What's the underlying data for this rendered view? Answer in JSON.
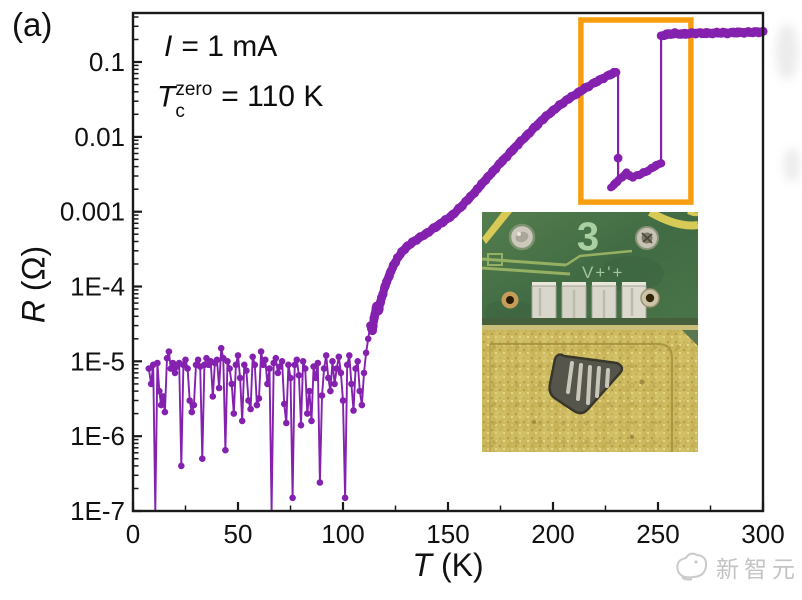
{
  "figure": {
    "panel_label": "(a)"
  },
  "annotations": {
    "current": {
      "var": "I",
      "rest": "= 1 mA"
    },
    "tc": {
      "var": "T",
      "sup": "zero",
      "sub": "c",
      "rest": "= 110 K"
    }
  },
  "axes": {
    "x": {
      "label_var": "T",
      "label_rest": "(K)",
      "range": [
        0,
        300
      ],
      "ticks": [
        {
          "value": 0,
          "label": "0"
        },
        {
          "value": 50,
          "label": "50"
        },
        {
          "value": 100,
          "label": "100"
        },
        {
          "value": 150,
          "label": "150"
        },
        {
          "value": 200,
          "label": "200"
        },
        {
          "value": 250,
          "label": "250"
        },
        {
          "value": 300,
          "label": "300"
        }
      ],
      "minor_ticks": [
        25,
        75,
        125,
        175,
        225,
        275
      ]
    },
    "y": {
      "label_var": "R",
      "label_rest": "(Ω)",
      "scale": "log",
      "range": [
        1e-07,
        0.452
      ],
      "ticks": [
        {
          "value": 0.1,
          "label": "0.1"
        },
        {
          "value": 0.01,
          "label": "0.01"
        },
        {
          "value": 0.001,
          "label": "0.001"
        },
        {
          "value": 0.0001,
          "label": "1E-4"
        },
        {
          "value": 1e-05,
          "label": "1E-5"
        },
        {
          "value": 1e-06,
          "label": "1E-6"
        },
        {
          "value": 1e-07,
          "label": "1E-7"
        }
      ]
    }
  },
  "chart_data": {
    "type": "line",
    "title": "",
    "xlabel": "T (K)",
    "ylabel": "R (Ω)",
    "xlim": [
      0,
      300
    ],
    "ylim_log": [
      1e-07,
      0.452
    ],
    "legend": "none",
    "grid": false,
    "colors": {
      "data": "#8421AE",
      "highlight_box": "#F69D10"
    },
    "highlight_box": {
      "x0": 213.3,
      "x1": 265.7,
      "y0": 0.00134,
      "y1": 0.364
    },
    "series": [
      {
        "name": "superconducting_noise_floor",
        "style": "noise",
        "points": [
          [
            7.5,
            8e-06
          ],
          [
            8.6,
            5e-06
          ],
          [
            9.6,
            9e-06
          ],
          [
            10.6,
            1e-07
          ],
          [
            11.6,
            9.5e-06
          ],
          [
            12.5,
            4e-06
          ],
          [
            13.4,
            2.6e-06
          ],
          [
            14.3,
            3.4e-06
          ],
          [
            15.2,
            2.1e-06
          ],
          [
            16.2,
            1.1e-05
          ],
          [
            17.1,
            1.35e-05
          ],
          [
            18,
            8e-06
          ],
          [
            19,
            9.5e-06
          ],
          [
            20,
            7e-06
          ],
          [
            21,
            8.5e-06
          ],
          [
            22,
            9.5e-06
          ],
          [
            23,
            4e-07
          ],
          [
            24,
            9e-06
          ],
          [
            25,
            1.05e-05
          ],
          [
            26,
            8e-06
          ],
          [
            27,
            3e-06
          ],
          [
            28,
            2.1e-06
          ],
          [
            29,
            2.6e-06
          ],
          [
            30,
            9e-06
          ],
          [
            31,
            1.05e-05
          ],
          [
            32,
            8.5e-06
          ],
          [
            33,
            5e-07
          ],
          [
            34,
            9e-06
          ],
          [
            35,
            1.1e-05
          ],
          [
            36,
            9e-06
          ],
          [
            37,
            1e-05
          ],
          [
            38,
            3.4e-06
          ],
          [
            39,
            9.5e-06
          ],
          [
            40,
            1.05e-05
          ],
          [
            41,
            4.4e-06
          ],
          [
            42,
            1.5e-05
          ],
          [
            43,
            1.1e-05
          ],
          [
            44,
            6.5e-07
          ],
          [
            45,
            1e-05
          ],
          [
            46,
            8e-06
          ],
          [
            47,
            5e-06
          ],
          [
            48,
            2e-06
          ],
          [
            49,
            9e-06
          ],
          [
            50,
            1.2e-05
          ],
          [
            51,
            6e-06
          ],
          [
            52,
            1.6e-06
          ],
          [
            53,
            9e-06
          ],
          [
            54,
            7.5e-06
          ],
          [
            55,
            3e-06
          ],
          [
            56,
            2.3e-06
          ],
          [
            57,
            1.15e-05
          ],
          [
            58,
            9e-06
          ],
          [
            59,
            2.6e-06
          ],
          [
            60,
            3.2e-06
          ],
          [
            61,
            1.35e-05
          ],
          [
            62,
            9e-06
          ],
          [
            63,
            1.05e-05
          ],
          [
            64,
            5e-06
          ],
          [
            65,
            8e-06
          ],
          [
            66,
            1e-07
          ],
          [
            67,
            9.5e-06
          ],
          [
            68,
            1.1e-05
          ],
          [
            69,
            7e-06
          ],
          [
            70,
            8.5e-06
          ],
          [
            71,
            1e-05
          ],
          [
            72,
            2.7e-06
          ],
          [
            73,
            1.5e-06
          ],
          [
            74,
            9e-06
          ],
          [
            75,
            6e-06
          ],
          [
            76,
            1.5e-07
          ],
          [
            77,
            9e-06
          ],
          [
            78,
            1.05e-05
          ],
          [
            79,
            6.5e-06
          ],
          [
            80,
            1.4e-06
          ],
          [
            81,
            1e-05
          ],
          [
            82,
            8e-06
          ],
          [
            83,
            2e-06
          ],
          [
            84,
            4e-06
          ],
          [
            85,
            1.6e-06
          ],
          [
            86,
            8.5e-06
          ],
          [
            87,
            6e-06
          ],
          [
            88,
            9.5e-06
          ],
          [
            89,
            2.4e-07
          ],
          [
            90,
            3.5e-06
          ],
          [
            91,
            8e-06
          ],
          [
            92,
            1.2e-05
          ],
          [
            93,
            6e-06
          ],
          [
            94,
            4e-06
          ],
          [
            95,
            1e-05
          ],
          [
            96,
            5e-06
          ],
          [
            97,
            8e-06
          ],
          [
            98,
            1.15e-05
          ],
          [
            99,
            7e-06
          ],
          [
            100,
            3e-06
          ],
          [
            101,
            1.5e-07
          ],
          [
            102,
            9e-06
          ],
          [
            103,
            1.2e-05
          ],
          [
            104,
            5e-06
          ],
          [
            105,
            2.2e-06
          ],
          [
            106,
            8e-06
          ],
          [
            107,
            1e-05
          ],
          [
            108,
            4e-06
          ],
          [
            109,
            2.6e-06
          ],
          [
            110,
            7e-06
          ],
          [
            111,
            1.3e-05
          ],
          [
            112,
            2e-05
          ],
          [
            113,
            3e-05
          ]
        ]
      },
      {
        "name": "transition_rise",
        "style": "thick",
        "dot_r": 4.4,
        "points": [
          [
            113,
            3e-05
          ],
          [
            114,
            2.6e-05
          ],
          [
            115,
            4e-05
          ],
          [
            116,
            5.5e-05
          ],
          [
            117,
            4.8e-05
          ],
          [
            118,
            6.5e-05
          ],
          [
            119,
            8e-05
          ],
          [
            120,
            0.0001
          ],
          [
            122,
            0.00014
          ],
          [
            124,
            0.00019
          ],
          [
            126,
            0.00024
          ],
          [
            128,
            0.00029
          ],
          [
            130,
            0.00033
          ],
          [
            133,
            0.00039
          ],
          [
            136,
            0.00044
          ],
          [
            140,
            0.00052
          ],
          [
            144,
            0.00062
          ],
          [
            148,
            0.00074
          ],
          [
            152,
            0.0009
          ],
          [
            156,
            0.00115
          ],
          [
            160,
            0.0015
          ],
          [
            164,
            0.002
          ],
          [
            168,
            0.0027
          ],
          [
            172,
            0.0036
          ],
          [
            176,
            0.0048
          ],
          [
            180,
            0.0063
          ],
          [
            184,
            0.0083
          ],
          [
            188,
            0.0108
          ],
          [
            192,
            0.014
          ],
          [
            196,
            0.018
          ],
          [
            200,
            0.0225
          ],
          [
            204,
            0.0275
          ],
          [
            208,
            0.033
          ],
          [
            212,
            0.039
          ],
          [
            216,
            0.046
          ],
          [
            220,
            0.053
          ],
          [
            224,
            0.061
          ],
          [
            227,
            0.067
          ],
          [
            229,
            0.072
          ],
          [
            230,
            0.073
          ]
        ]
      },
      {
        "name": "resistance_drop_231K",
        "style": "thin",
        "points": [
          [
            231,
            0.073
          ],
          [
            231,
            0.0052
          ],
          [
            231,
            0.0026
          ]
        ],
        "marker_at": [
          231,
          0.0052
        ]
      },
      {
        "name": "low_resistance_plateau",
        "style": "thick",
        "dot_r": 4.0,
        "points": [
          [
            227.5,
            0.0021
          ],
          [
            229,
            0.0023
          ],
          [
            231,
            0.0026
          ],
          [
            233,
            0.0029
          ],
          [
            235,
            0.0033
          ],
          [
            236.5,
            0.003
          ],
          [
            238,
            0.0029
          ],
          [
            241,
            0.0031
          ],
          [
            244,
            0.0034
          ],
          [
            247,
            0.0038
          ],
          [
            249,
            0.0041
          ],
          [
            251.5,
            0.0045
          ]
        ]
      },
      {
        "name": "resistance_jump_252K",
        "style": "thin",
        "points": [
          [
            251.5,
            0.0045
          ],
          [
            251.5,
            0.225
          ]
        ]
      },
      {
        "name": "normal_state_plateau",
        "style": "thick",
        "dot_r": 4.6,
        "points": [
          [
            251.5,
            0.225
          ],
          [
            254,
            0.235
          ],
          [
            258,
            0.24
          ],
          [
            263,
            0.238
          ],
          [
            268,
            0.243
          ],
          [
            273,
            0.242
          ],
          [
            278,
            0.246
          ],
          [
            283,
            0.244
          ],
          [
            288,
            0.248
          ],
          [
            293,
            0.25
          ],
          [
            298,
            0.252
          ],
          [
            300,
            0.253
          ]
        ]
      }
    ]
  },
  "inset": {
    "board_number": "3",
    "silkscreen_text": "V+'+"
  },
  "watermark": {
    "text": "新智元"
  }
}
